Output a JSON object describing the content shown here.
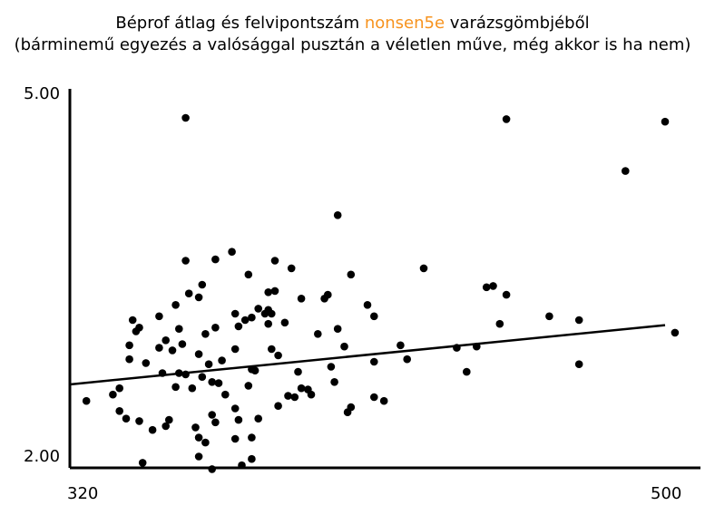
{
  "title": {
    "line1_before": "Béprof átlag és felvipontszám ",
    "line1_accent": "nonsen5e",
    "line1_after": " varázsgömbjéből",
    "line2": "(bárminemű egyezés a valósággal pusztán a véletlen műve, még akkor is ha nem)"
  },
  "colors": {
    "accent": "#f7931e",
    "points": "#000000",
    "axes": "#000000"
  },
  "chart_data": {
    "type": "scatter",
    "title": "Béprof átlag és felvipontszám nonsen5e varázsgömbjéből (bárminemű egyezés a valósággal pusztán a véletlen műve, még akkor is ha nem)",
    "xlabel": "",
    "ylabel": "",
    "xlim": [
      320,
      500
    ],
    "ylim": [
      2.0,
      5.0
    ],
    "x_tick_labels": [
      "320",
      "500"
    ],
    "y_tick_labels": [
      "5.00",
      "2.00"
    ],
    "grid": false,
    "legend": "none",
    "points": [
      [
        333,
        2.58
      ],
      [
        325,
        2.53
      ],
      [
        335,
        2.45
      ],
      [
        337,
        2.39
      ],
      [
        335,
        2.63
      ],
      [
        338,
        2.86
      ],
      [
        339,
        3.17
      ],
      [
        338,
        2.97
      ],
      [
        340,
        3.08
      ],
      [
        341,
        3.11
      ],
      [
        341,
        2.37
      ],
      [
        343,
        2.83
      ],
      [
        342,
        2.04
      ],
      [
        345,
        2.3
      ],
      [
        347,
        2.95
      ],
      [
        347,
        3.2
      ],
      [
        348,
        2.75
      ],
      [
        349,
        3.01
      ],
      [
        349,
        2.33
      ],
      [
        350,
        2.38
      ],
      [
        351,
        2.93
      ],
      [
        352,
        3.29
      ],
      [
        352,
        2.64
      ],
      [
        353,
        3.1
      ],
      [
        353,
        2.75
      ],
      [
        354,
        2.98
      ],
      [
        355,
        3.64
      ],
      [
        355,
        2.74
      ],
      [
        355,
        4.77
      ],
      [
        356,
        3.38
      ],
      [
        357,
        2.63
      ],
      [
        358,
        2.32
      ],
      [
        359,
        3.35
      ],
      [
        359,
        2.24
      ],
      [
        359,
        2.09
      ],
      [
        359,
        2.9
      ],
      [
        360,
        2.72
      ],
      [
        360,
        3.45
      ],
      [
        361,
        3.06
      ],
      [
        362,
        2.82
      ],
      [
        361,
        2.2
      ],
      [
        363,
        2.68
      ],
      [
        363,
        2.42
      ],
      [
        364,
        3.11
      ],
      [
        364,
        3.65
      ],
      [
        364,
        2.36
      ],
      [
        365,
        2.67
      ],
      [
        366,
        2.85
      ],
      [
        367,
        2.58
      ],
      [
        369,
        3.71
      ],
      [
        370,
        3.22
      ],
      [
        370,
        2.47
      ],
      [
        370,
        2.94
      ],
      [
        371,
        2.38
      ],
      [
        371,
        3.12
      ],
      [
        372,
        2.02
      ],
      [
        373,
        3.17
      ],
      [
        374,
        2.65
      ],
      [
        374,
        3.53
      ],
      [
        375,
        2.24
      ],
      [
        375,
        3.19
      ],
      [
        376,
        2.77
      ],
      [
        377,
        3.26
      ],
      [
        377,
        2.39
      ],
      [
        379,
        3.22
      ],
      [
        380,
        3.14
      ],
      [
        380,
        3.39
      ],
      [
        381,
        3.22
      ],
      [
        381,
        2.94
      ],
      [
        382,
        3.4
      ],
      [
        382,
        3.64
      ],
      [
        383,
        2.89
      ],
      [
        383,
        2.49
      ],
      [
        385,
        3.15
      ],
      [
        386,
        2.57
      ],
      [
        387,
        3.58
      ],
      [
        388,
        2.56
      ],
      [
        389,
        2.76
      ],
      [
        390,
        3.34
      ],
      [
        390,
        2.63
      ],
      [
        392,
        2.62
      ],
      [
        393,
        2.58
      ],
      [
        395,
        3.06
      ],
      [
        397,
        3.34
      ],
      [
        398,
        3.37
      ],
      [
        399,
        2.8
      ],
      [
        400,
        2.68
      ],
      [
        401,
        3.1
      ],
      [
        401,
        4.0
      ],
      [
        403,
        2.96
      ],
      [
        404,
        2.44
      ],
      [
        405,
        3.53
      ],
      [
        405,
        2.48
      ],
      [
        410,
        3.29
      ],
      [
        412,
        2.56
      ],
      [
        412,
        2.84
      ],
      [
        412,
        3.2
      ],
      [
        415,
        2.53
      ],
      [
        422,
        2.86
      ],
      [
        420,
        2.97
      ],
      [
        427,
        3.58
      ],
      [
        437,
        2.95
      ],
      [
        440,
        2.76
      ],
      [
        443,
        2.96
      ],
      [
        446,
        3.43
      ],
      [
        448,
        3.44
      ],
      [
        450,
        3.14
      ],
      [
        452,
        4.76
      ],
      [
        452,
        3.37
      ],
      [
        465,
        3.2
      ],
      [
        474,
        3.17
      ],
      [
        474,
        2.82
      ],
      [
        488,
        4.35
      ],
      [
        500,
        4.74
      ],
      [
        503,
        3.07
      ],
      [
        363,
        1.99
      ],
      [
        370,
        2.23
      ],
      [
        375,
        2.07
      ],
      [
        375,
        2.78
      ],
      [
        380,
        3.25
      ]
    ],
    "trend_line": {
      "x": [
        320,
        500
      ],
      "y": [
        2.66,
        3.13
      ]
    }
  }
}
